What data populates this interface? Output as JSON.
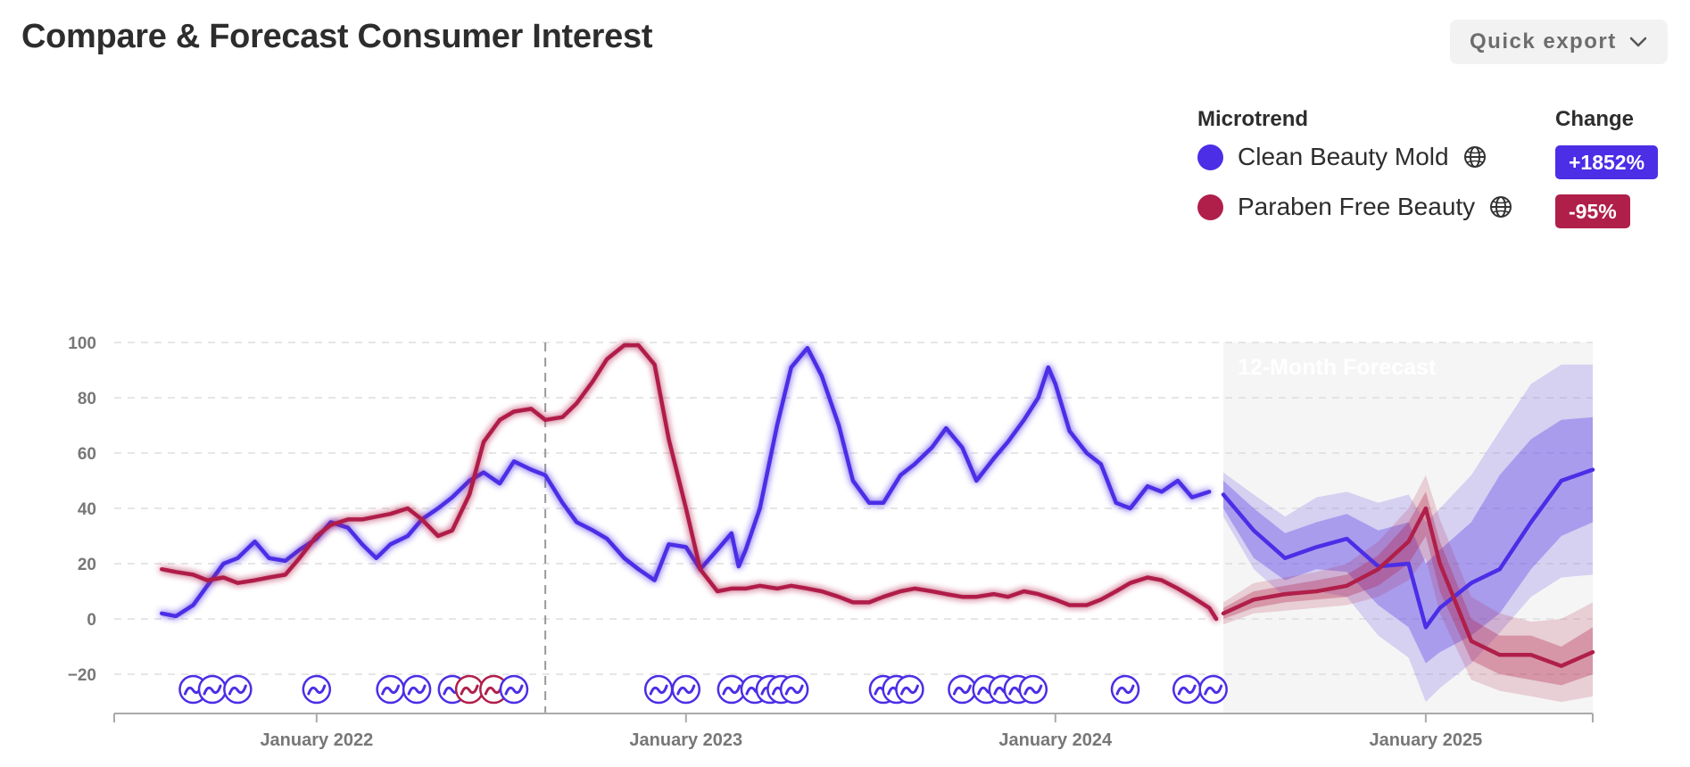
{
  "header": {
    "title": "Compare & Forecast Consumer Interest",
    "export_label": "Quick export"
  },
  "legend": {
    "microtrend_header": "Microtrend",
    "change_header": "Change",
    "items": [
      {
        "name": "Clean Beauty Mold",
        "change": "+1852%",
        "color": "#4b2ee6",
        "icon": "globe-icon"
      },
      {
        "name": "Paraben Free Beauty",
        "change": "-95%",
        "color": "#b01f4a",
        "icon": "globe-icon"
      }
    ]
  },
  "chart_data": {
    "type": "line",
    "forecast_label": "12-Month Forecast",
    "x_ticks": [
      "January 2022",
      "January 2023",
      "January 2024",
      "January 2025"
    ],
    "y_ticks": [
      100,
      80,
      60,
      40,
      20,
      0,
      -20
    ],
    "ylim": [
      -34,
      100
    ],
    "xlim": [
      "2021-06-15",
      "2025-06-15"
    ],
    "forecast_start": "2024-06-15",
    "marker_line_date": "2022-08-15",
    "grid": true,
    "series": [
      {
        "name": "Clean Beauty Mold",
        "color": "#4b2ee6",
        "points": [
          [
            "2021-08-01",
            2
          ],
          [
            "2021-08-15",
            1
          ],
          [
            "2021-09-01",
            5
          ],
          [
            "2021-09-15",
            12
          ],
          [
            "2021-10-01",
            20
          ],
          [
            "2021-10-15",
            22
          ],
          [
            "2021-11-01",
            28
          ],
          [
            "2021-11-15",
            22
          ],
          [
            "2021-12-01",
            21
          ],
          [
            "2021-12-15",
            25
          ],
          [
            "2022-01-01",
            29
          ],
          [
            "2022-01-15",
            35
          ],
          [
            "2022-02-01",
            33
          ],
          [
            "2022-02-15",
            27
          ],
          [
            "2022-03-01",
            22
          ],
          [
            "2022-03-15",
            27
          ],
          [
            "2022-04-01",
            30
          ],
          [
            "2022-04-15",
            36
          ],
          [
            "2022-05-01",
            40
          ],
          [
            "2022-05-15",
            44
          ],
          [
            "2022-06-01",
            50
          ],
          [
            "2022-06-15",
            53
          ],
          [
            "2022-07-01",
            49
          ],
          [
            "2022-07-15",
            57
          ],
          [
            "2022-08-01",
            54
          ],
          [
            "2022-08-15",
            52
          ],
          [
            "2022-09-01",
            42
          ],
          [
            "2022-09-15",
            35
          ],
          [
            "2022-10-01",
            32
          ],
          [
            "2022-10-15",
            29
          ],
          [
            "2022-11-01",
            22
          ],
          [
            "2022-11-15",
            18
          ],
          [
            "2022-12-01",
            14
          ],
          [
            "2022-12-15",
            27
          ],
          [
            "2023-01-01",
            26
          ],
          [
            "2023-01-15",
            18
          ],
          [
            "2023-02-01",
            25
          ],
          [
            "2023-02-15",
            31
          ],
          [
            "2023-02-22",
            19
          ],
          [
            "2023-03-01",
            25
          ],
          [
            "2023-03-15",
            40
          ],
          [
            "2023-04-01",
            70
          ],
          [
            "2023-04-15",
            91
          ],
          [
            "2023-05-01",
            98
          ],
          [
            "2023-05-15",
            88
          ],
          [
            "2023-06-01",
            70
          ],
          [
            "2023-06-15",
            50
          ],
          [
            "2023-07-01",
            42
          ],
          [
            "2023-07-15",
            42
          ],
          [
            "2023-08-01",
            52
          ],
          [
            "2023-08-15",
            56
          ],
          [
            "2023-09-01",
            62
          ],
          [
            "2023-09-15",
            69
          ],
          [
            "2023-10-01",
            62
          ],
          [
            "2023-10-15",
            50
          ],
          [
            "2023-11-01",
            58
          ],
          [
            "2023-11-15",
            64
          ],
          [
            "2023-12-01",
            72
          ],
          [
            "2023-12-15",
            80
          ],
          [
            "2023-12-25",
            91
          ],
          [
            "2024-01-01",
            85
          ],
          [
            "2024-01-15",
            68
          ],
          [
            "2024-02-01",
            60
          ],
          [
            "2024-02-15",
            56
          ],
          [
            "2024-03-01",
            42
          ],
          [
            "2024-03-15",
            40
          ],
          [
            "2024-04-01",
            48
          ],
          [
            "2024-04-15",
            46
          ],
          [
            "2024-05-01",
            50
          ],
          [
            "2024-05-15",
            44
          ],
          [
            "2024-06-01",
            46
          ]
        ]
      },
      {
        "name": "Paraben Free Beauty",
        "color": "#b01f4a",
        "points": [
          [
            "2021-08-01",
            18
          ],
          [
            "2021-08-15",
            17
          ],
          [
            "2021-09-01",
            16
          ],
          [
            "2021-09-15",
            14
          ],
          [
            "2021-10-01",
            15
          ],
          [
            "2021-10-15",
            13
          ],
          [
            "2021-11-01",
            14
          ],
          [
            "2021-11-15",
            15
          ],
          [
            "2021-12-01",
            16
          ],
          [
            "2021-12-15",
            22
          ],
          [
            "2022-01-01",
            30
          ],
          [
            "2022-01-15",
            34
          ],
          [
            "2022-02-01",
            36
          ],
          [
            "2022-02-15",
            36
          ],
          [
            "2022-03-01",
            37
          ],
          [
            "2022-03-15",
            38
          ],
          [
            "2022-04-01",
            40
          ],
          [
            "2022-04-15",
            36
          ],
          [
            "2022-05-01",
            30
          ],
          [
            "2022-05-15",
            32
          ],
          [
            "2022-06-01",
            45
          ],
          [
            "2022-06-15",
            64
          ],
          [
            "2022-07-01",
            72
          ],
          [
            "2022-07-15",
            75
          ],
          [
            "2022-08-01",
            76
          ],
          [
            "2022-08-15",
            72
          ],
          [
            "2022-09-01",
            73
          ],
          [
            "2022-09-15",
            78
          ],
          [
            "2022-10-01",
            86
          ],
          [
            "2022-10-15",
            94
          ],
          [
            "2022-11-01",
            99
          ],
          [
            "2022-11-15",
            99
          ],
          [
            "2022-12-01",
            92
          ],
          [
            "2022-12-15",
            65
          ],
          [
            "2023-01-01",
            40
          ],
          [
            "2023-01-15",
            18
          ],
          [
            "2023-02-01",
            10
          ],
          [
            "2023-02-15",
            11
          ],
          [
            "2023-03-01",
            11
          ],
          [
            "2023-03-15",
            12
          ],
          [
            "2023-04-01",
            11
          ],
          [
            "2023-04-15",
            12
          ],
          [
            "2023-05-01",
            11
          ],
          [
            "2023-05-15",
            10
          ],
          [
            "2023-06-01",
            8
          ],
          [
            "2023-06-15",
            6
          ],
          [
            "2023-07-01",
            6
          ],
          [
            "2023-07-15",
            8
          ],
          [
            "2023-08-01",
            10
          ],
          [
            "2023-08-15",
            11
          ],
          [
            "2023-09-01",
            10
          ],
          [
            "2023-09-15",
            9
          ],
          [
            "2023-10-01",
            8
          ],
          [
            "2023-10-15",
            8
          ],
          [
            "2023-11-01",
            9
          ],
          [
            "2023-11-15",
            8
          ],
          [
            "2023-12-01",
            10
          ],
          [
            "2023-12-15",
            9
          ],
          [
            "2024-01-01",
            7
          ],
          [
            "2024-01-15",
            5
          ],
          [
            "2024-02-01",
            5
          ],
          [
            "2024-02-15",
            7
          ],
          [
            "2024-03-01",
            10
          ],
          [
            "2024-03-15",
            13
          ],
          [
            "2024-04-01",
            15
          ],
          [
            "2024-04-15",
            14
          ],
          [
            "2024-05-01",
            11
          ],
          [
            "2024-05-15",
            8
          ],
          [
            "2024-06-01",
            4
          ],
          [
            "2024-06-08",
            0
          ]
        ]
      }
    ],
    "forecast": [
      {
        "name": "Clean Beauty Mold",
        "color": "#4b2ee6",
        "points": [
          [
            "2024-06-15",
            45,
            40,
            50,
            37,
            53
          ],
          [
            "2024-07-15",
            32,
            22,
            40,
            18,
            45
          ],
          [
            "2024-08-15",
            22,
            14,
            31,
            8,
            37
          ],
          [
            "2024-09-15",
            26,
            18,
            35,
            10,
            44
          ],
          [
            "2024-10-15",
            29,
            17,
            38,
            8,
            46
          ],
          [
            "2024-11-15",
            19,
            5,
            32,
            -6,
            42
          ],
          [
            "2024-12-15",
            20,
            -3,
            35,
            -14,
            45
          ],
          [
            "2025-01-01",
            -3,
            -16,
            20,
            -30,
            35
          ],
          [
            "2025-01-15",
            4,
            -12,
            25,
            -25,
            40
          ],
          [
            "2025-02-15",
            13,
            -6,
            35,
            -16,
            52
          ],
          [
            "2025-03-15",
            18,
            2,
            52,
            -5,
            68
          ],
          [
            "2025-04-15",
            35,
            18,
            65,
            8,
            85
          ],
          [
            "2025-05-15",
            50,
            30,
            72,
            15,
            92
          ],
          [
            "2025-06-15",
            54,
            35,
            73,
            16,
            92
          ]
        ]
      },
      {
        "name": "Paraben Free Beauty",
        "color": "#b01f4a",
        "points": [
          [
            "2024-06-15",
            2,
            0,
            4,
            -2,
            6
          ],
          [
            "2024-07-15",
            7,
            4,
            10,
            2,
            13
          ],
          [
            "2024-08-15",
            9,
            6,
            12,
            3,
            15
          ],
          [
            "2024-09-15",
            10,
            7,
            14,
            4,
            17
          ],
          [
            "2024-10-15",
            12,
            8,
            16,
            5,
            20
          ],
          [
            "2024-11-15",
            18,
            12,
            23,
            8,
            28
          ],
          [
            "2024-12-15",
            28,
            20,
            35,
            14,
            40
          ],
          [
            "2025-01-01",
            40,
            30,
            46,
            22,
            52
          ],
          [
            "2025-01-15",
            20,
            10,
            28,
            2,
            36
          ],
          [
            "2025-02-15",
            -8,
            -15,
            0,
            -22,
            8
          ],
          [
            "2025-03-15",
            -13,
            -20,
            -6,
            -26,
            2
          ],
          [
            "2025-04-15",
            -13,
            -22,
            -6,
            -28,
            -1
          ],
          [
            "2025-05-15",
            -17,
            -24,
            -10,
            -30,
            0
          ],
          [
            "2025-06-15",
            -12,
            -20,
            -3,
            -28,
            6
          ]
        ]
      }
    ],
    "event_markers": [
      {
        "date": "2021-09-01",
        "series": "Clean Beauty Mold"
      },
      {
        "date": "2021-09-20",
        "series": "Clean Beauty Mold"
      },
      {
        "date": "2021-10-15",
        "series": "Clean Beauty Mold"
      },
      {
        "date": "2022-01-01",
        "series": "Clean Beauty Mold"
      },
      {
        "date": "2022-03-15",
        "series": "Clean Beauty Mold"
      },
      {
        "date": "2022-04-10",
        "series": "Clean Beauty Mold"
      },
      {
        "date": "2022-05-15",
        "series": "Clean Beauty Mold"
      },
      {
        "date": "2022-06-01",
        "series": "Paraben Free Beauty"
      },
      {
        "date": "2022-06-25",
        "series": "Paraben Free Beauty"
      },
      {
        "date": "2022-07-15",
        "series": "Clean Beauty Mold"
      },
      {
        "date": "2022-12-05",
        "series": "Clean Beauty Mold"
      },
      {
        "date": "2023-01-01",
        "series": "Clean Beauty Mold"
      },
      {
        "date": "2023-02-15",
        "series": "Clean Beauty Mold"
      },
      {
        "date": "2023-03-10",
        "series": "Clean Beauty Mold"
      },
      {
        "date": "2023-03-25",
        "series": "Clean Beauty Mold"
      },
      {
        "date": "2023-04-05",
        "series": "Clean Beauty Mold"
      },
      {
        "date": "2023-04-18",
        "series": "Clean Beauty Mold"
      },
      {
        "date": "2023-07-15",
        "series": "Clean Beauty Mold"
      },
      {
        "date": "2023-07-28",
        "series": "Clean Beauty Mold"
      },
      {
        "date": "2023-08-10",
        "series": "Clean Beauty Mold"
      },
      {
        "date": "2023-10-01",
        "series": "Clean Beauty Mold"
      },
      {
        "date": "2023-10-25",
        "series": "Clean Beauty Mold"
      },
      {
        "date": "2023-11-10",
        "series": "Clean Beauty Mold"
      },
      {
        "date": "2023-11-25",
        "series": "Clean Beauty Mold"
      },
      {
        "date": "2023-12-10",
        "series": "Clean Beauty Mold"
      },
      {
        "date": "2024-03-10",
        "series": "Clean Beauty Mold"
      },
      {
        "date": "2024-05-10",
        "series": "Clean Beauty Mold"
      },
      {
        "date": "2024-06-05",
        "series": "Clean Beauty Mold"
      }
    ]
  }
}
